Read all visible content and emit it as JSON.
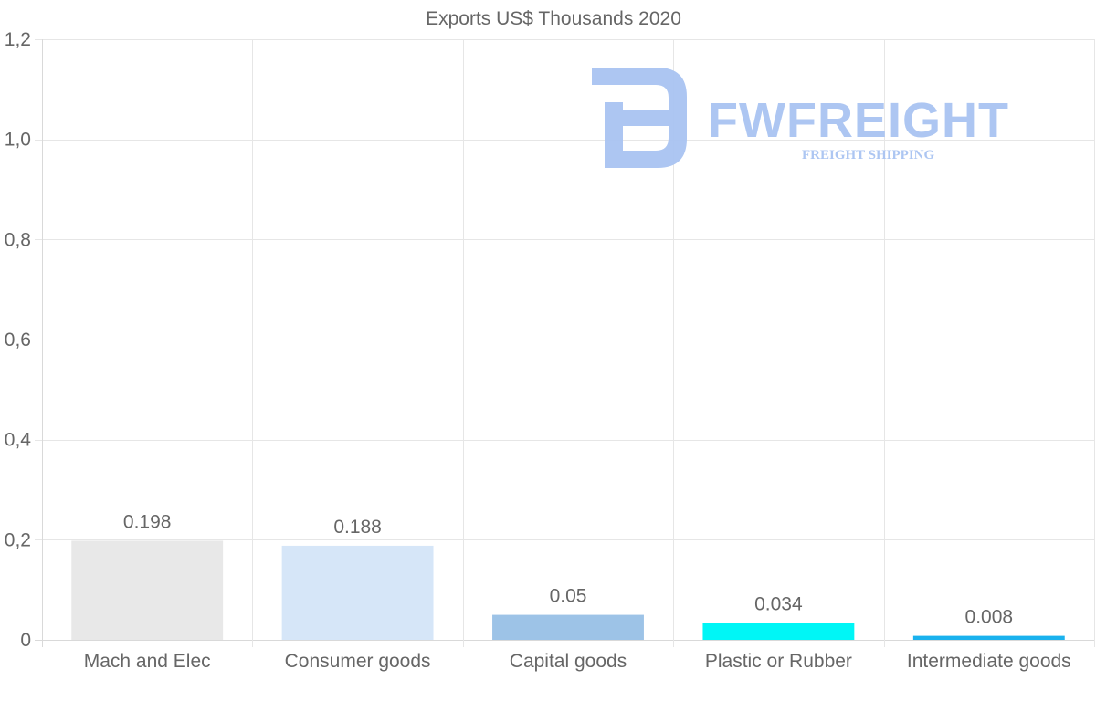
{
  "watermark": {
    "brand": "FWFREIGHT",
    "tagline": "FREIGHT SHIPPING",
    "color": "#a9c4f2"
  },
  "chart_data": {
    "type": "bar",
    "title": "Exports US$ Thousands 2020",
    "xlabel": "",
    "ylabel": "",
    "ylim": [
      0,
      1.2
    ],
    "yticks": [
      {
        "value": 0,
        "label": "0"
      },
      {
        "value": 0.2,
        "label": "0,2"
      },
      {
        "value": 0.4,
        "label": "0,4"
      },
      {
        "value": 0.6,
        "label": "0,6"
      },
      {
        "value": 0.8,
        "label": "0,8"
      },
      {
        "value": 1.0,
        "label": "1,0"
      },
      {
        "value": 1.2,
        "label": "1,2"
      }
    ],
    "categories": [
      "Mach and Elec",
      "Consumer goods",
      "Capital goods",
      "Plastic or Rubber",
      "Intermediate goods"
    ],
    "values": [
      0.198,
      0.188,
      0.05,
      0.034,
      0.008
    ],
    "value_labels": [
      "0.198",
      "0.188",
      "0.05",
      "0.034",
      "0.008"
    ],
    "colors": [
      "#e8e8e8",
      "#d6e6f8",
      "#9dc3e7",
      "#00f6f6",
      "#1ab2ee"
    ],
    "grid": true,
    "legend": "none"
  }
}
